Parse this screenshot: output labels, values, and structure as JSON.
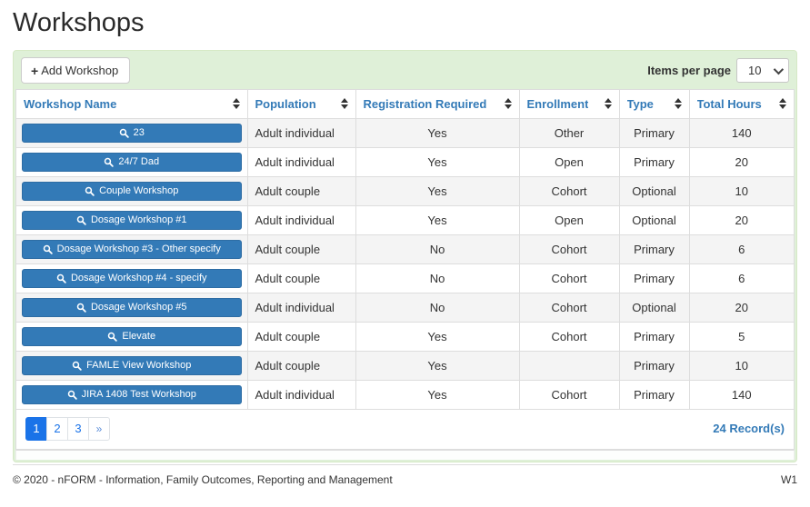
{
  "page": {
    "title": "Workshops"
  },
  "toolbar": {
    "add_button_label": "Add Workshop",
    "plus_icon": "+",
    "items_per_page_label": "Items per page",
    "items_per_page_value": "10"
  },
  "table": {
    "columns": [
      {
        "label": "Workshop Name"
      },
      {
        "label": "Population"
      },
      {
        "label": "Registration Required"
      },
      {
        "label": "Enrollment"
      },
      {
        "label": "Type"
      },
      {
        "label": "Total Hours"
      }
    ],
    "rows": [
      {
        "name": "23",
        "population": "Adult individual",
        "registration_required": "Yes",
        "enrollment": "Other",
        "type": "Primary",
        "total_hours": "140"
      },
      {
        "name": "24/7 Dad",
        "population": "Adult individual",
        "registration_required": "Yes",
        "enrollment": "Open",
        "type": "Primary",
        "total_hours": "20"
      },
      {
        "name": "Couple Workshop",
        "population": "Adult couple",
        "registration_required": "Yes",
        "enrollment": "Cohort",
        "type": "Optional",
        "total_hours": "10"
      },
      {
        "name": "Dosage Workshop #1",
        "population": "Adult individual",
        "registration_required": "Yes",
        "enrollment": "Open",
        "type": "Optional",
        "total_hours": "20"
      },
      {
        "name": "Dosage Workshop #3 - Other specify",
        "population": "Adult couple",
        "registration_required": "No",
        "enrollment": "Cohort",
        "type": "Primary",
        "total_hours": "6"
      },
      {
        "name": "Dosage Workshop #4 - specify",
        "population": "Adult couple",
        "registration_required": "No",
        "enrollment": "Cohort",
        "type": "Primary",
        "total_hours": "6"
      },
      {
        "name": "Dosage Workshop #5",
        "population": "Adult individual",
        "registration_required": "No",
        "enrollment": "Cohort",
        "type": "Optional",
        "total_hours": "20"
      },
      {
        "name": "Elevate",
        "population": "Adult couple",
        "registration_required": "Yes",
        "enrollment": "Cohort",
        "type": "Primary",
        "total_hours": "5"
      },
      {
        "name": "FAMLE View Workshop",
        "population": "Adult couple",
        "registration_required": "Yes",
        "enrollment": "",
        "type": "Primary",
        "total_hours": "10"
      },
      {
        "name": "JIRA 1408 Test Workshop",
        "population": "Adult individual",
        "registration_required": "Yes",
        "enrollment": "Cohort",
        "type": "Primary",
        "total_hours": "140"
      }
    ]
  },
  "pagination": {
    "pages": [
      "1",
      "2",
      "3",
      "»"
    ],
    "active_page": "1",
    "record_count": "24 Record(s)"
  },
  "footer": {
    "copyright": "© 2020 - nFORM - Information, Family Outcomes, Reporting and Management",
    "site_code": "W1"
  },
  "colors": {
    "panel_background": "#dff0d8",
    "panel_border": "#d6e9c6",
    "header_link_blue": "#337ab7",
    "workshop_button_blue": "#337ab7",
    "pagination_active_blue": "#1a73e8",
    "row_stripe": "#f4f4f4",
    "table_border": "#dddddd"
  },
  "icons": {
    "add": "plus-icon",
    "workshop_button": "magnifier-icon",
    "sort": "sort-arrows-icon",
    "items_per_page": "chevron-down-icon"
  }
}
